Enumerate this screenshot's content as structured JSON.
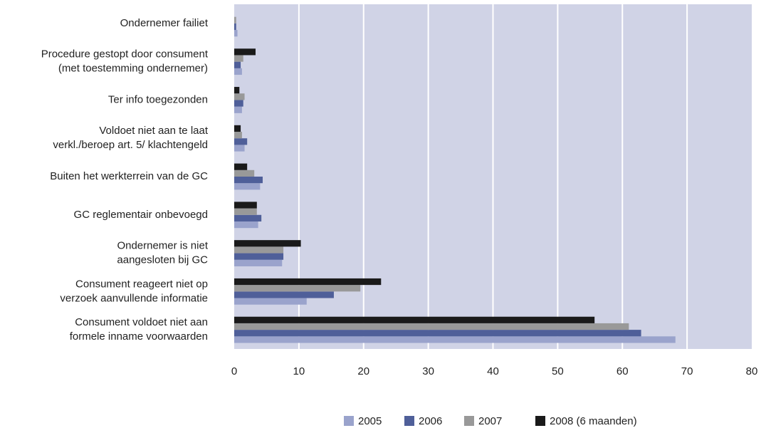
{
  "chart_data": {
    "type": "hbar",
    "categories": [
      [
        "Ondernemer failiet"
      ],
      [
        "Procedure gestopt door consument",
        "(met toestemming ondernemer)"
      ],
      [
        "Ter info toegezonden"
      ],
      [
        "Voldoet niet aan te laat",
        "verkl./beroep art. 5/ klachtengeld"
      ],
      [
        "Buiten het werkterrein van de GC"
      ],
      [
        "GC reglementair onbevoegd"
      ],
      [
        "Ondernemer is niet",
        "aangesloten bij GC"
      ],
      [
        "Consument reageert niet op",
        "verzoek aanvullende informatie"
      ],
      [
        "Consument voldoet niet aan",
        "formele inname voorwaarden"
      ]
    ],
    "series": [
      {
        "name": "2005",
        "color": "#9aa3cc",
        "values": [
          0.5,
          1.2,
          1.2,
          1.6,
          4.0,
          3.7,
          7.4,
          11.2,
          68.2
        ]
      },
      {
        "name": "2006",
        "color": "#4f5f99",
        "values": [
          0.3,
          1.0,
          1.4,
          2.0,
          4.4,
          4.2,
          7.6,
          15.4,
          62.9
        ]
      },
      {
        "name": "2007",
        "color": "#999999",
        "values": [
          0.3,
          1.4,
          1.6,
          1.2,
          3.1,
          3.5,
          7.6,
          19.5,
          61.0
        ]
      },
      {
        "name": "2008 (6 maanden)",
        "color": "#1a1a1a",
        "values": [
          0,
          3.3,
          0.8,
          1.0,
          2.0,
          3.5,
          10.3,
          22.7,
          55.7
        ]
      }
    ],
    "xlim": [
      0,
      80
    ],
    "xticks": [
      0,
      10,
      20,
      30,
      40,
      50,
      60,
      70,
      80
    ],
    "grid": true
  }
}
